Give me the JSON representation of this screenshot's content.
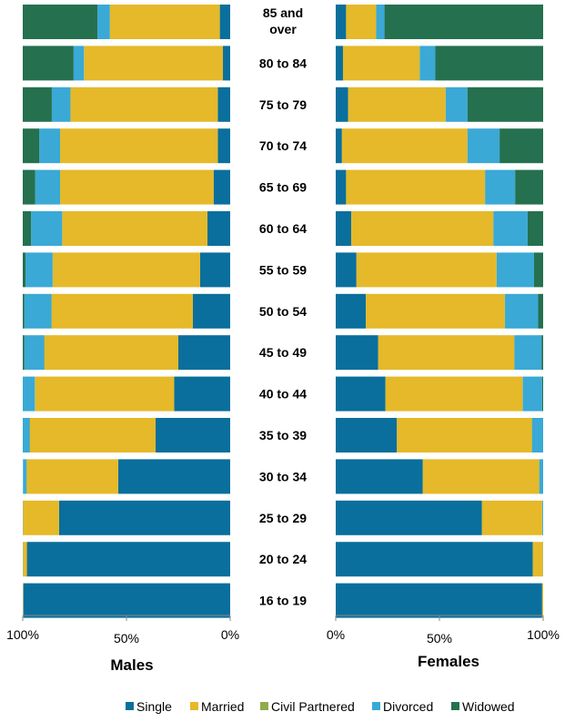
{
  "chart_data": [
    {
      "type": "bar",
      "orientation": "horizontal-stacked",
      "title": "Males",
      "direction": "right-to-left",
      "xlim": [
        0,
        100
      ],
      "xticks": [
        "100%",
        "50%",
        "0%"
      ],
      "categories": [
        "85 and over",
        "80 to 84",
        "75 to 79",
        "70 to 74",
        "65 to 69",
        "60 to 64",
        "55 to 59",
        "50 to 54",
        "45 to 49",
        "40 to 44",
        "35 to 39",
        "30 to 34",
        "25 to 29",
        "20 to 24",
        "16 to 19"
      ],
      "series": [
        {
          "name": "Single",
          "color": "#0a6f9c",
          "values": [
            5,
            3.5,
            6,
            6,
            8,
            11,
            14.5,
            18,
            25,
            27,
            36,
            54,
            82.5,
            98,
            99.7
          ]
        },
        {
          "name": "Married",
          "color": "#e5b929",
          "values": [
            53,
            67,
            71,
            76,
            74,
            70,
            71,
            68,
            64.5,
            67,
            60.5,
            44,
            17.3,
            1.9,
            0.2
          ]
        },
        {
          "name": "Civil Partnered",
          "color": "#8fab4e",
          "values": [
            0,
            0,
            0,
            0,
            0,
            0,
            0.1,
            0.2,
            0.2,
            0.2,
            0.2,
            0.2,
            0.1,
            0,
            0
          ]
        },
        {
          "name": "Divorced",
          "color": "#3aa9d6",
          "values": [
            6,
            5,
            9,
            10,
            12,
            15,
            13,
            13,
            9.5,
            5.8,
            3.3,
            1.7,
            0.1,
            0.1,
            0.1
          ]
        },
        {
          "name": "Widowed",
          "color": "#25704f",
          "values": [
            36,
            24.5,
            14,
            8,
            6,
            4,
            1.4,
            0.8,
            0.8,
            0,
            0,
            0,
            0,
            0,
            0
          ]
        }
      ]
    },
    {
      "type": "bar",
      "orientation": "horizontal-stacked",
      "title": "Females",
      "direction": "left-to-right",
      "xlim": [
        0,
        100
      ],
      "xticks": [
        "0%",
        "50%",
        "100%"
      ],
      "categories": [
        "85 and over",
        "80 to 84",
        "75 to 79",
        "70 to 74",
        "65 to 69",
        "60 to 64",
        "55 to 59",
        "50 to 54",
        "45 to 49",
        "40 to 44",
        "35 to 39",
        "30 to 34",
        "25 to 29",
        "20 to 24",
        "16 to 19"
      ],
      "series": [
        {
          "name": "Single",
          "color": "#0a6f9c",
          "values": [
            5,
            3.5,
            6,
            3,
            5,
            7.5,
            10,
            14.5,
            20.5,
            24,
            29.5,
            42,
            70.5,
            95,
            99.5
          ]
        },
        {
          "name": "Married",
          "color": "#e5b929",
          "values": [
            14.5,
            37,
            47,
            60.5,
            67,
            68.5,
            67.5,
            67,
            65.5,
            66,
            65,
            56,
            29,
            4.9,
            0.5
          ]
        },
        {
          "name": "Civil Partnered",
          "color": "#8fab4e",
          "values": [
            0,
            0,
            0,
            0,
            0,
            0,
            0.1,
            0.1,
            0.2,
            0.2,
            0.2,
            0.2,
            0.1,
            0,
            0
          ]
        },
        {
          "name": "Divorced",
          "color": "#3aa9d6",
          "values": [
            4,
            7.5,
            10.5,
            15.5,
            14.5,
            16.5,
            18,
            16,
            13,
            9.3,
            5.3,
            1.8,
            0.4,
            0.1,
            0
          ]
        },
        {
          "name": "Widowed",
          "color": "#25704f",
          "values": [
            76.5,
            52,
            36.5,
            21,
            13.5,
            7.5,
            4.4,
            2.4,
            0.8,
            0.5,
            0,
            0,
            0,
            0,
            0
          ]
        }
      ]
    }
  ],
  "legend": [
    "Single",
    "Married",
    "Civil Partnered",
    "Divorced",
    "Widowed"
  ]
}
